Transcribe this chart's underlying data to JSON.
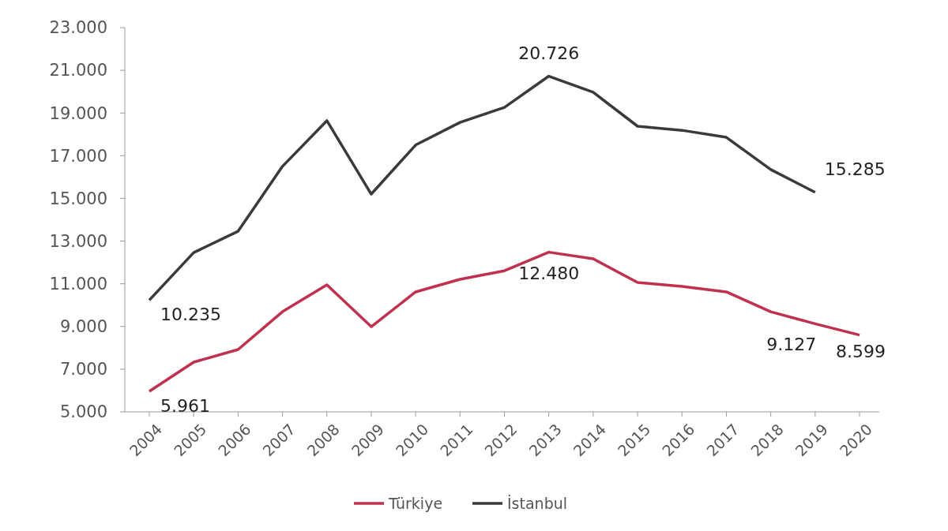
{
  "chart_data": {
    "type": "line",
    "categories": [
      "2004",
      "2005",
      "2006",
      "2007",
      "2008",
      "2009",
      "2010",
      "2011",
      "2012",
      "2013",
      "2014",
      "2015",
      "2016",
      "2017",
      "2018",
      "2019",
      "2020"
    ],
    "series": [
      {
        "name": "Türkiye",
        "color": "#c0304f",
        "values": [
          5961,
          7330,
          7920,
          9690,
          10950,
          8990,
          10620,
          11210,
          11610,
          12480,
          12170,
          11060,
          10880,
          10620,
          9690,
          9127,
          8599
        ]
      },
      {
        "name": "İstanbul",
        "color": "#3a3a3a",
        "values": [
          10235,
          12460,
          13460,
          16500,
          18640,
          15200,
          17500,
          18560,
          19260,
          20726,
          19970,
          18380,
          18190,
          17860,
          16350,
          15285,
          null
        ]
      }
    ],
    "ylim": [
      5000,
      23000
    ],
    "yticks": [
      {
        "value": 5000,
        "label": "5.000"
      },
      {
        "value": 7000,
        "label": "7.000"
      },
      {
        "value": 9000,
        "label": "9.000"
      },
      {
        "value": 11000,
        "label": "11.000"
      },
      {
        "value": 13000,
        "label": "13.000"
      },
      {
        "value": 15000,
        "label": "15.000"
      },
      {
        "value": 17000,
        "label": "17.000"
      },
      {
        "value": 19000,
        "label": "19.000"
      },
      {
        "value": 21000,
        "label": "21.000"
      },
      {
        "value": 23000,
        "label": "23.000"
      }
    ],
    "annotations": [
      {
        "text": "10.235",
        "x": "2004",
        "y": 10235
      },
      {
        "text": "20.726",
        "x": "2013",
        "y": 20726
      },
      {
        "text": "15.285",
        "x": "2019",
        "y": 15285
      },
      {
        "text": "5.961",
        "x": "2004",
        "y": 5961
      },
      {
        "text": "12.480",
        "x": "2013",
        "y": 12480
      },
      {
        "text": "9.127",
        "x": "2019",
        "y": 9127
      },
      {
        "text": "8.599",
        "x": "2020",
        "y": 8599
      }
    ],
    "grid": false,
    "legend": "bottom",
    "marker": "none",
    "line_style": "solid"
  }
}
